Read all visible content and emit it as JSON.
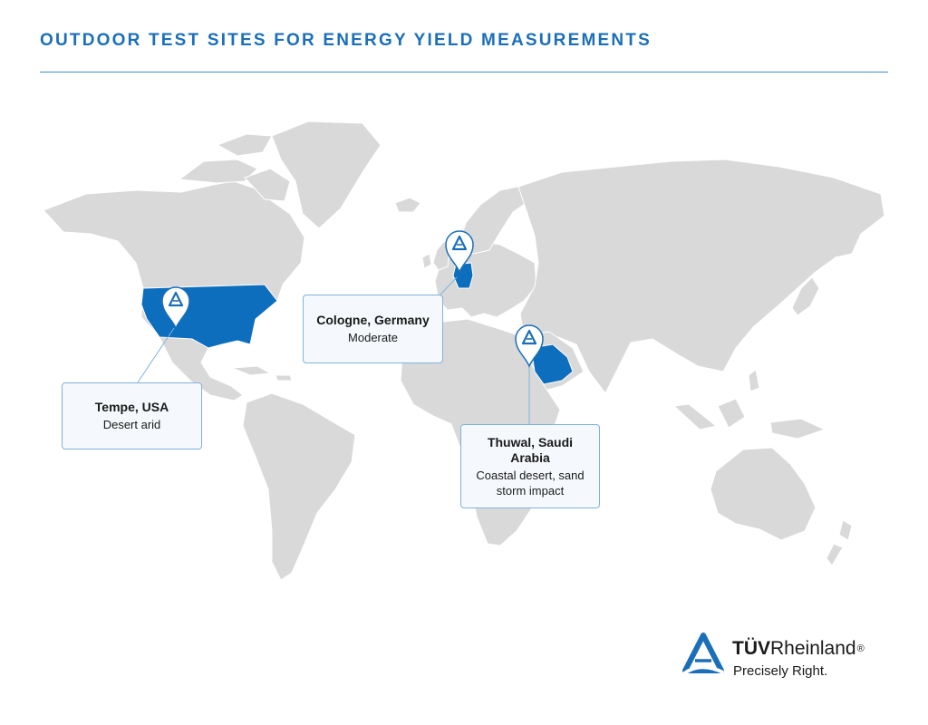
{
  "header": {
    "title": "OUTDOOR TEST SITES FOR ENERGY YIELD MEASUREMENTS"
  },
  "map": {
    "land_color": "#d9d9d9",
    "border_color": "#ffffff",
    "highlight_color": "#0d6ebd",
    "marker_icon": "tuv-location-pin-icon",
    "sites": [
      {
        "name": "Tempe, USA",
        "description": "Desert arid"
      },
      {
        "name": "Cologne, Germany",
        "description": "Moderate"
      },
      {
        "name": "Thuwal, Saudi Arabia",
        "description": "Coastal desert, sand storm impact"
      }
    ]
  },
  "logo": {
    "brand_bold": "TÜV",
    "brand_regular": "Rheinland",
    "registered": "®",
    "tagline": "Precisely Right.",
    "icon": "tuv-triangle-logo-icon"
  }
}
